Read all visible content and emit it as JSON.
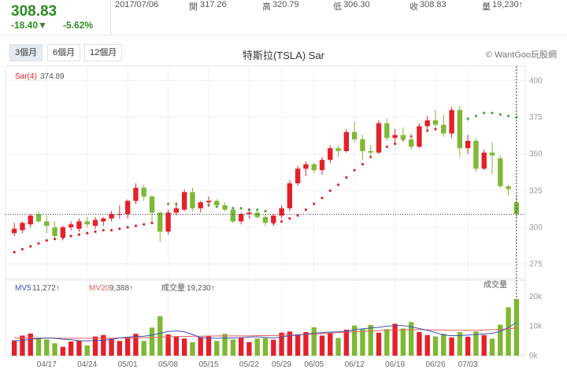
{
  "quote": {
    "price": "308.83",
    "change": "-18.40▼",
    "change_pct": "-5.62%",
    "date": "2017/07/06",
    "open_label": "開",
    "open": "317.26",
    "high_label": "高",
    "high": "320.79",
    "low_label": "低",
    "low": "306.30",
    "close_label": "收",
    "close": "308.83",
    "volume_label": "量",
    "volume": "19,230↑"
  },
  "range_buttons": [
    {
      "label": "3個月",
      "active": true
    },
    {
      "label": "6個月",
      "active": false
    },
    {
      "label": "12個月",
      "active": false
    }
  ],
  "colors": {
    "up": "#e3212b",
    "down": "#7fb834",
    "sar": "#e3212b",
    "sar_bear": "#4aa64a",
    "mv5": "#3f51b5",
    "mv20": "#e06060"
  },
  "chart_data": [
    {
      "type": "candlestick",
      "title": "特斯拉(TSLA) Sar",
      "watermark": "© WantGoo玩股網",
      "indicator_label": "Sar(4)",
      "indicator_value": "374.89",
      "ylim": [
        265,
        410
      ],
      "yticks": [
        275,
        300,
        325,
        350,
        375,
        400
      ],
      "last_close": 308.83,
      "xtick_labels": [
        {
          "label": "04/17",
          "index": 4
        },
        {
          "label": "04/24",
          "index": 9
        },
        {
          "label": "05/01",
          "index": 14
        },
        {
          "label": "05/08",
          "index": 19
        },
        {
          "label": "05/15",
          "index": 24
        },
        {
          "label": "05/22",
          "index": 29
        },
        {
          "label": "05/29",
          "index": 33
        },
        {
          "label": "06/05",
          "index": 37
        },
        {
          "label": "06/12",
          "index": 42
        },
        {
          "label": "06/19",
          "index": 47
        },
        {
          "label": "06/26",
          "index": 52
        },
        {
          "label": "07/03",
          "index": 56
        }
      ],
      "ohlc": [
        [
          296,
          303,
          294,
          299
        ],
        [
          298,
          304,
          296,
          303
        ],
        [
          302,
          309,
          300,
          308
        ],
        [
          309,
          311,
          303,
          304
        ],
        [
          304,
          308,
          296,
          301
        ],
        [
          300,
          304,
          293,
          294
        ],
        [
          293,
          301,
          291,
          300
        ],
        [
          300,
          304,
          298,
          302
        ],
        [
          299,
          306,
          297,
          304
        ],
        [
          304,
          307,
          300,
          302
        ],
        [
          301,
          307,
          299,
          305
        ],
        [
          304,
          307,
          301,
          306
        ],
        [
          306,
          311,
          304,
          309
        ],
        [
          309,
          315,
          306,
          309
        ],
        [
          309,
          319,
          306,
          318
        ],
        [
          318,
          330,
          316,
          327
        ],
        [
          327,
          329,
          318,
          321
        ],
        [
          321,
          322,
          304,
          310
        ],
        [
          310,
          311,
          290,
          297
        ],
        [
          297,
          312,
          295,
          310
        ],
        [
          310,
          316,
          308,
          313
        ],
        [
          312,
          326,
          311,
          324
        ],
        [
          324,
          327,
          311,
          313
        ],
        [
          313,
          318,
          310,
          317
        ],
        [
          317,
          321,
          314,
          318
        ],
        [
          318,
          319,
          314,
          315
        ],
        [
          315,
          317,
          311,
          312
        ],
        [
          312,
          313,
          303,
          304
        ],
        [
          304,
          310,
          302,
          309
        ],
        [
          309,
          313,
          306,
          310
        ],
        [
          310,
          311,
          306,
          307
        ],
        [
          307,
          309,
          301,
          303
        ],
        [
          303,
          309,
          301,
          308
        ],
        [
          308,
          315,
          306,
          313
        ],
        [
          313,
          332,
          311,
          330
        ],
        [
          330,
          342,
          328,
          340
        ],
        [
          340,
          345,
          335,
          343
        ],
        [
          343,
          344,
          337,
          339
        ],
        [
          339,
          348,
          336,
          346
        ],
        [
          346,
          356,
          344,
          354
        ],
        [
          354,
          356,
          348,
          352
        ],
        [
          352,
          367,
          351,
          365
        ],
        [
          365,
          372,
          358,
          360
        ],
        [
          360,
          363,
          346,
          352
        ],
        [
          352,
          356,
          347,
          351
        ],
        [
          351,
          373,
          350,
          371
        ],
        [
          371,
          374,
          359,
          361
        ],
        [
          361,
          367,
          357,
          363
        ],
        [
          363,
          368,
          358,
          360
        ],
        [
          360,
          364,
          353,
          355
        ],
        [
          355,
          371,
          354,
          369
        ],
        [
          369,
          376,
          365,
          373
        ],
        [
          373,
          380,
          368,
          370
        ],
        [
          370,
          377,
          362,
          364
        ],
        [
          364,
          382,
          361,
          380
        ],
        [
          380,
          383,
          348,
          354
        ],
        [
          354,
          363,
          350,
          359
        ],
        [
          359,
          361,
          338,
          340
        ],
        [
          340,
          353,
          339,
          351
        ],
        [
          351,
          358,
          336,
          349
        ]
      ],
      "ohlc_tail": [
        [
          347,
          349,
          327,
          328
        ],
        [
          328,
          329,
          322,
          326
        ],
        [
          317,
          321,
          306,
          309
        ]
      ],
      "sar": [
        283,
        285,
        287,
        289,
        291,
        292,
        293,
        294,
        295,
        296,
        297,
        298,
        298,
        299,
        300,
        301,
        302,
        303,
        304,
        316,
        316,
        316,
        316,
        315,
        315,
        314,
        314,
        313,
        313,
        312,
        312,
        311,
        303,
        304,
        306,
        308,
        312,
        316,
        320,
        325,
        329,
        334,
        339,
        343,
        348,
        352,
        355,
        357,
        360,
        362,
        364,
        366,
        367,
        369,
        370,
        372,
        374,
        376,
        378,
        378,
        377,
        376,
        375
      ],
      "sar_bear_from": [
        19,
        20,
        21,
        22,
        23,
        24,
        25,
        26,
        27,
        28,
        29,
        30,
        31,
        53,
        54,
        55,
        56,
        57,
        58,
        59,
        60,
        61,
        62
      ]
    },
    {
      "type": "bar",
      "title": "成交量",
      "legend": [
        {
          "name": "MV5",
          "value": "11,272↑"
        },
        {
          "name": "MV20",
          "value": "9,388↑"
        },
        {
          "name": "成交量",
          "value": "19,230↑"
        }
      ],
      "ylim": [
        0,
        24
      ],
      "yticks": [
        {
          "value": 20,
          "label": "20k"
        },
        {
          "value": 10,
          "label": "10k"
        },
        {
          "value": 0,
          "label": "0k"
        }
      ],
      "values": [
        5.2,
        6.8,
        7.5,
        6.0,
        5.5,
        4.2,
        3.0,
        4.8,
        5.2,
        3.5,
        6.5,
        7.0,
        5.8,
        5.0,
        6.2,
        7.4,
        5.0,
        9.5,
        13.4,
        7.2,
        6.5,
        5.8,
        4.6,
        6.3,
        6.8,
        5.0,
        7.4,
        5.5,
        6.2,
        4.6,
        5.8,
        6.0,
        5.4,
        7.8,
        8.2,
        7.2,
        8.0,
        9.6,
        6.8,
        7.8,
        6.0,
        8.8,
        10.2,
        9.0,
        10.4,
        7.8,
        9.0,
        10.8,
        9.2,
        11.4,
        8.0,
        7.0,
        6.5,
        7.4,
        6.2,
        8.0,
        6.4,
        8.2,
        7.0,
        5.8,
        10.5,
        16.4,
        19.2
      ],
      "mv5": [
        5,
        5.2,
        5.5,
        5.8,
        6.0,
        5.9,
        5.6,
        5.4,
        5.1,
        5.0,
        5.1,
        5.2,
        5.5,
        6.0,
        6.3,
        6.5,
        6.6,
        7.0,
        7.6,
        8.2,
        8.4,
        8.1,
        7.2,
        6.1,
        6.0,
        5.9,
        6.0,
        6.0,
        6.1,
        6.3,
        6.4,
        6.2,
        6.0,
        6.3,
        6.8,
        7.0,
        7.3,
        7.6,
        7.8,
        8.0,
        8.1,
        8.3,
        8.8,
        9.1,
        9.4,
        9.6,
        10.0,
        10.2,
        10.2,
        9.8,
        9.2,
        8.6,
        7.8,
        7.0,
        6.8,
        6.8,
        7.0,
        7.2,
        7.4,
        7.6,
        8.2,
        9.5,
        11.3
      ],
      "mv20": [
        6.0,
        6.0,
        6.0,
        6.0,
        6.0,
        6.0,
        5.9,
        5.9,
        5.9,
        5.9,
        5.9,
        5.9,
        5.9,
        6.0,
        6.0,
        6.1,
        6.1,
        6.2,
        6.3,
        6.4,
        6.5,
        6.5,
        6.6,
        6.6,
        6.6,
        6.7,
        6.7,
        6.7,
        6.7,
        6.7,
        6.8,
        6.8,
        6.8,
        6.9,
        7.0,
        7.1,
        7.2,
        7.3,
        7.5,
        7.6,
        7.8,
        8.0,
        8.1,
        8.2,
        8.4,
        8.5,
        8.6,
        8.7,
        8.8,
        8.8,
        8.8,
        8.8,
        8.7,
        8.7,
        8.6,
        8.6,
        8.6,
        8.6,
        8.7,
        8.8,
        8.9,
        9.1,
        9.39
      ]
    }
  ]
}
